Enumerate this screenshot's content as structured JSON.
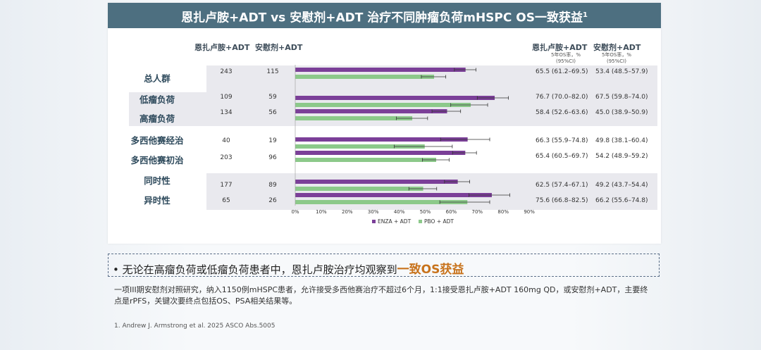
{
  "title": "恩扎卢胺+ADT vs 安慰剂+ADT 治疗不同肿瘤负荷mHSPC OS一致获益",
  "title_sup": "1",
  "headers": {
    "n_enza": "恩扎卢胺+ADT",
    "n_pbo": "安慰剂+ADT",
    "rate_enza": "恩扎卢胺+ADT",
    "rate_pbo": "安慰剂+ADT",
    "rate_sub_line1": "5年OS率，%",
    "rate_sub_line2": "(95%CI)"
  },
  "colors": {
    "enza": "#7b3f98",
    "pbo": "#8cc98a",
    "band": "#e9e9ee",
    "title_bg": "#4d6f80",
    "highlight": "#c8731c"
  },
  "chart_data": {
    "type": "bar",
    "orientation": "horizontal",
    "xlim": [
      0,
      90
    ],
    "xticks": [
      "0%",
      "10%",
      "20%",
      "30%",
      "40%",
      "50%",
      "60%",
      "70%",
      "80%",
      "90%"
    ],
    "legend": [
      "ENZA + ADT",
      "PBO + ADT"
    ],
    "legend_position": "bottom",
    "rows": [
      {
        "n_enza": "243",
        "n_pbo": "115",
        "enza": 65.5,
        "enza_ci": [
          61.2,
          69.5
        ],
        "pbo": 53.4,
        "pbo_ci": [
          48.5,
          57.9
        ],
        "enza_text": "65.5 (61.2–69.5)",
        "pbo_text": "53.4 (48.5–57.9)"
      },
      {
        "n_enza": "109",
        "n_pbo": "59",
        "enza": 76.7,
        "enza_ci": [
          70.0,
          82.0
        ],
        "pbo": 67.5,
        "pbo_ci": [
          59.8,
          74.0
        ],
        "enza_text": "76.7 (70.0–82.0)",
        "pbo_text": "67.5 (59.8–74.0)"
      },
      {
        "n_enza": "134",
        "n_pbo": "56",
        "enza": 58.4,
        "enza_ci": [
          52.6,
          63.6
        ],
        "pbo": 45.0,
        "pbo_ci": [
          38.9,
          50.9
        ],
        "enza_text": "58.4 (52.6–63.6)",
        "pbo_text": "45.0 (38.9–50.9)"
      },
      {
        "n_enza": "40",
        "n_pbo": "19",
        "enza": 66.3,
        "enza_ci": [
          55.9,
          74.8
        ],
        "pbo": 49.8,
        "pbo_ci": [
          38.1,
          60.4
        ],
        "enza_text": "66.3 (55.9–74.8)",
        "pbo_text": "49.8 (38.1–60.4)"
      },
      {
        "n_enza": "203",
        "n_pbo": "96",
        "enza": 65.4,
        "enza_ci": [
          60.5,
          69.7
        ],
        "pbo": 54.2,
        "pbo_ci": [
          48.9,
          59.2
        ],
        "enza_text": "65.4 (60.5–69.7)",
        "pbo_text": "54.2 (48.9–59.2)"
      },
      {
        "n_enza": "177",
        "n_pbo": "89",
        "enza": 62.5,
        "enza_ci": [
          57.4,
          67.1
        ],
        "pbo": 49.2,
        "pbo_ci": [
          43.7,
          54.4
        ],
        "enza_text": "62.5 (57.4–67.1)",
        "pbo_text": "49.2 (43.7–54.4)"
      },
      {
        "n_enza": "65",
        "n_pbo": "26",
        "enza": 75.6,
        "enza_ci": [
          66.8,
          82.5
        ],
        "pbo": 66.2,
        "pbo_ci": [
          55.6,
          74.8
        ],
        "enza_text": "75.6 (66.8–82.5)",
        "pbo_text": "66.2 (55.6–74.8)"
      }
    ],
    "group_labels": [
      "总人群",
      "低瘤负荷",
      "高瘤负荷",
      "多西他赛经治",
      "多西他赛初治",
      "同时性",
      "异时性"
    ]
  },
  "bullet": {
    "prefix": "• ",
    "text": "无论在高瘤负荷或低瘤负荷患者中，恩扎卢胺治疗均观察到",
    "highlight": "一致OS获益"
  },
  "description": "一项III期安慰剂对照研究，纳入1150例mHSPC患者，允许接受多西他赛治疗不超过6个月，1:1接受恩扎卢胺+ADT 160mg QD，或安慰剂+ADT，主要终点是rPFS，关键次要终点包括OS、PSA相关结果等。",
  "reference": "1.     Andrew J. Armstrong et al. 2025 ASCO Abs.5005"
}
